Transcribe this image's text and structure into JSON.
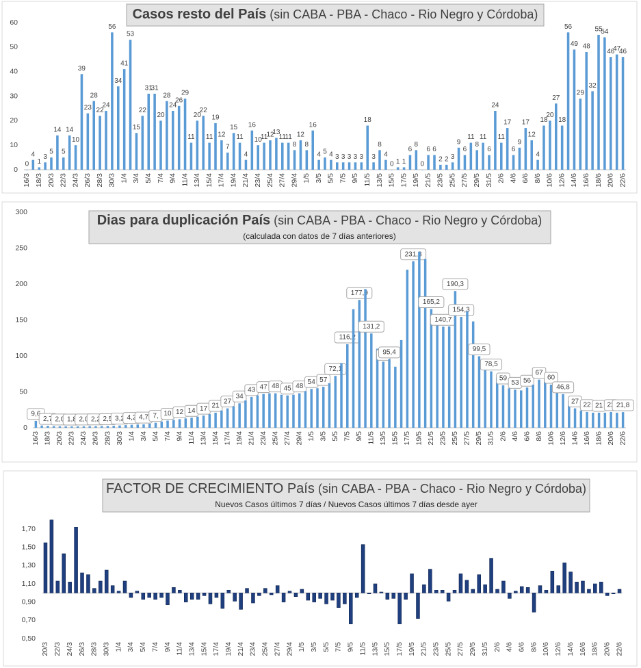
{
  "chart_data": [
    {
      "type": "bar",
      "title": "Casos resto del País",
      "title_note": "(sin CABA - PBA - Chaco - Rio Negro y Córdoba)",
      "color": "#5b9bd5",
      "categories": [
        "16/3",
        null,
        "18/3",
        null,
        "20/3",
        null,
        "22/3",
        null,
        "24/3",
        null,
        "26/3",
        null,
        "28/3",
        null,
        "30/3",
        null,
        "1/4",
        null,
        "3/4",
        null,
        "5/4",
        null,
        "7/4",
        null,
        "9/4",
        null,
        "11/4",
        null,
        "13/4",
        null,
        "15/4",
        null,
        "17/4",
        null,
        "19/4",
        null,
        "21/4",
        null,
        "23/4",
        null,
        "25/4",
        null,
        "27/4",
        null,
        "29/4",
        null,
        "1/5",
        null,
        "3/5",
        null,
        "5/5",
        null,
        "7/5",
        null,
        "9/5",
        null,
        "11/5",
        null,
        "13/5",
        null,
        "15/5",
        null,
        "17/5",
        null,
        "19/5",
        null,
        "21/5",
        null,
        "23/5",
        null,
        "25/5",
        null,
        "27/5",
        null,
        "29/5",
        null,
        "31/5",
        null,
        "2/6",
        null,
        "4/6",
        null,
        "6/6",
        null,
        "8/6",
        null,
        "10/6",
        null,
        "12/6",
        null,
        "14/6",
        null,
        "16/6",
        null,
        "18/6",
        null,
        "20/6",
        null,
        "22/6"
      ],
      "values": [
        0,
        4,
        1,
        3,
        5,
        14,
        5,
        14,
        10,
        39,
        23,
        28,
        22,
        24,
        56,
        34,
        41,
        53,
        15,
        22,
        31,
        31,
        20,
        28,
        24,
        26,
        29,
        11,
        20,
        22,
        11,
        19,
        12,
        7,
        15,
        11,
        4,
        16,
        10,
        11,
        12,
        13,
        11,
        11,
        8,
        12,
        8,
        16,
        4,
        5,
        4,
        3,
        3,
        3,
        3,
        3,
        18,
        3,
        8,
        4,
        0,
        1,
        1,
        6,
        8,
        0,
        6,
        6,
        2,
        2,
        3,
        9,
        6,
        11,
        8,
        11,
        6,
        24,
        11,
        17,
        6,
        9,
        17,
        12,
        4,
        18,
        20,
        27,
        18,
        56,
        49,
        29,
        48,
        32,
        55,
        54,
        46,
        47,
        46
      ],
      "ylim": [
        0,
        60
      ],
      "yticks": [
        0,
        10,
        20,
        30,
        40,
        50,
        60
      ]
    },
    {
      "type": "bar",
      "title": "Dias para duplicación País",
      "title_note": "(sin CABA - PBA - Chaco - Rio Negro y Córdoba)",
      "subtitle": "(calculada con datos de 7 días anteriores)",
      "color": "#5b9bd5",
      "categories": [
        "16/3",
        null,
        "18/3",
        null,
        "20/3",
        null,
        "22/3",
        null,
        "24/3",
        null,
        "26/3",
        null,
        "28/3",
        null,
        "30/3",
        null,
        "1/4",
        null,
        "3/4",
        null,
        "5/4",
        null,
        "7/4",
        null,
        "9/4",
        null,
        "11/4",
        null,
        "13/4",
        null,
        "15/4",
        null,
        "17/4",
        null,
        "19/4",
        null,
        "21/4",
        null,
        "23/4",
        null,
        "25/4",
        null,
        "27/4",
        null,
        "29/4",
        null,
        "1/5",
        null,
        "3/5",
        null,
        "5/5",
        null,
        "7/5",
        null,
        "9/5",
        null,
        "11/5",
        null,
        "13/5",
        null,
        "15/5",
        null,
        "17/5",
        null,
        "19/5",
        null,
        "21/5",
        null,
        "23/5",
        null,
        "25/5",
        null,
        "27/5",
        null,
        "29/5",
        null,
        "31/5",
        null,
        "2/6",
        null,
        "4/6",
        null,
        "6/6",
        null,
        "8/6",
        null,
        "10/6",
        null,
        "12/6",
        null,
        "14/6",
        null,
        "16/6",
        null,
        "18/6",
        null,
        "20/6",
        null,
        "22/6"
      ],
      "values": [
        9.6,
        3.1,
        2.7,
        2.3,
        2.0,
        1.9,
        1.8,
        1.9,
        2.0,
        2.1,
        2.2,
        2.3,
        2.5,
        2.8,
        3.2,
        3.7,
        4.2,
        4.5,
        4.7,
        5.8,
        7.0,
        8.5,
        10,
        11,
        12,
        13,
        14,
        15.5,
        17,
        19,
        21,
        24,
        27,
        30,
        34,
        38,
        43,
        45,
        47,
        48,
        48,
        46,
        45,
        46,
        48,
        51,
        54,
        55,
        57,
        62,
        72.1,
        90,
        116.2,
        165,
        177.9,
        193,
        131.2,
        110,
        92,
        95.4,
        85,
        122,
        220,
        231.8,
        245,
        235,
        165.2,
        155,
        140.7,
        141,
        190.3,
        154.3,
        162,
        148,
        99.5,
        85,
        78.5,
        70,
        59,
        55,
        53,
        52,
        56,
        60,
        67,
        68,
        60,
        52,
        46.8,
        38,
        27,
        24,
        22,
        21,
        21,
        21,
        22,
        21,
        21.8
      ],
      "value_labels": [
        "9,6",
        null,
        "2,7",
        null,
        "2,0",
        null,
        "1,8",
        null,
        "2,0",
        null,
        "2,2",
        null,
        "2,5",
        null,
        "3,2",
        null,
        "4,2",
        null,
        "4,7",
        null,
        "7,",
        null,
        "10",
        null,
        "12",
        null,
        "14",
        null,
        "17",
        null,
        "21",
        null,
        "27",
        null,
        "34",
        null,
        "43",
        null,
        "47",
        null,
        "48",
        null,
        "45",
        null,
        "48",
        null,
        "54",
        null,
        "57",
        null,
        "72,1",
        null,
        "116,2",
        null,
        "177,9",
        null,
        "131,2",
        null,
        "92",
        "95,4",
        null,
        null,
        null,
        "231,8",
        null,
        null,
        "165,2",
        null,
        "140,7",
        null,
        "190,3",
        "154,3",
        null,
        null,
        "99,5",
        null,
        "78,5",
        null,
        "59",
        null,
        "53",
        null,
        "56",
        null,
        "67",
        null,
        "60",
        null,
        "46,8",
        null,
        "27",
        null,
        "22",
        null,
        "21",
        null,
        "22",
        null,
        "21,8"
      ],
      "ylim": [
        0,
        300
      ],
      "yticks": [
        0,
        50,
        100,
        150,
        200,
        250,
        300
      ]
    },
    {
      "type": "bar",
      "title": "FACTOR DE CRECIMIENTO País",
      "title_note": "(sin CABA - PBA - Chaco - Rio Negro y Córdoba)",
      "subtitle": "Nuevos Casos últimos 7 días / Nuevos Casos últimos 7 días desde ayer",
      "color": "#1f3f7f",
      "axis_crossing": 1,
      "categories": [
        "20/3",
        null,
        "22/3",
        null,
        "24/3",
        null,
        "26/3",
        null,
        "28/3",
        null,
        "30/3",
        null,
        "1/4",
        null,
        "3/4",
        null,
        "5/4",
        null,
        "7/4",
        null,
        "9/4",
        null,
        "11/4",
        null,
        "13/4",
        null,
        "15/4",
        null,
        "17/4",
        null,
        "19/4",
        null,
        "21/4",
        null,
        "23/4",
        null,
        "25/4",
        null,
        "27/4",
        null,
        "29/4",
        null,
        "1/5",
        null,
        "3/5",
        null,
        "5/5",
        null,
        "7/5",
        null,
        "9/5",
        null,
        "11/5",
        null,
        "13/5",
        null,
        "15/5",
        null,
        "17/5",
        null,
        "19/5",
        null,
        "21/5",
        null,
        "23/5",
        null,
        "25/5",
        null,
        "27/5",
        null,
        "29/5",
        null,
        "31/5",
        null,
        "2/6",
        null,
        "4/6",
        null,
        "6/6",
        null,
        "8/6",
        null,
        "10/6",
        null,
        "12/6",
        null,
        "14/6",
        null,
        "16/6",
        null,
        "18/6",
        null,
        "20/6",
        null,
        "22/6"
      ],
      "values": [
        1.55,
        1.8,
        1.13,
        1.43,
        1.12,
        1.72,
        1.22,
        1.2,
        1.05,
        1.13,
        1.25,
        1.08,
        1.02,
        1.13,
        0.95,
        1.02,
        0.93,
        0.95,
        0.93,
        0.95,
        0.87,
        1.06,
        1.03,
        0.9,
        0.93,
        0.93,
        0.97,
        0.88,
        0.95,
        0.83,
        1.03,
        0.91,
        0.82,
        1.05,
        0.89,
        0.97,
        1.05,
        0.98,
        1.08,
        0.9,
        1.02,
        0.96,
        1.04,
        0.92,
        0.9,
        0.94,
        0.88,
        0.92,
        0.84,
        0.88,
        0.66,
        0.95,
        1.53,
        0.99,
        1.1,
        1.01,
        0.93,
        0.94,
        0.66,
        0.93,
        1.21,
        0.72,
        1.09,
        1.26,
        1.03,
        1.03,
        0.91,
        1.03,
        1.21,
        1.14,
        1.04,
        1.2,
        1.09,
        1.38,
        1.04,
        1.13,
        0.94,
        1.02,
        1.07,
        1.06,
        0.79,
        1.08,
        1.03,
        1.24,
        1.08,
        1.33,
        1.23,
        1.12,
        1.13,
        1.04,
        1.1,
        1.12,
        0.97,
        0.99,
        1.04
      ],
      "ylim": [
        0.5,
        1.85
      ],
      "yticks": [
        {
          "value": 0.5,
          "label": "0,50"
        },
        {
          "value": 0.7,
          "label": "0,70"
        },
        {
          "value": 0.9,
          "label": "0,90"
        },
        {
          "value": 1.1,
          "label": "1,10"
        },
        {
          "value": 1.3,
          "label": "1,30"
        },
        {
          "value": 1.5,
          "label": "1,50"
        },
        {
          "value": 1.7,
          "label": "1,70"
        }
      ]
    }
  ]
}
